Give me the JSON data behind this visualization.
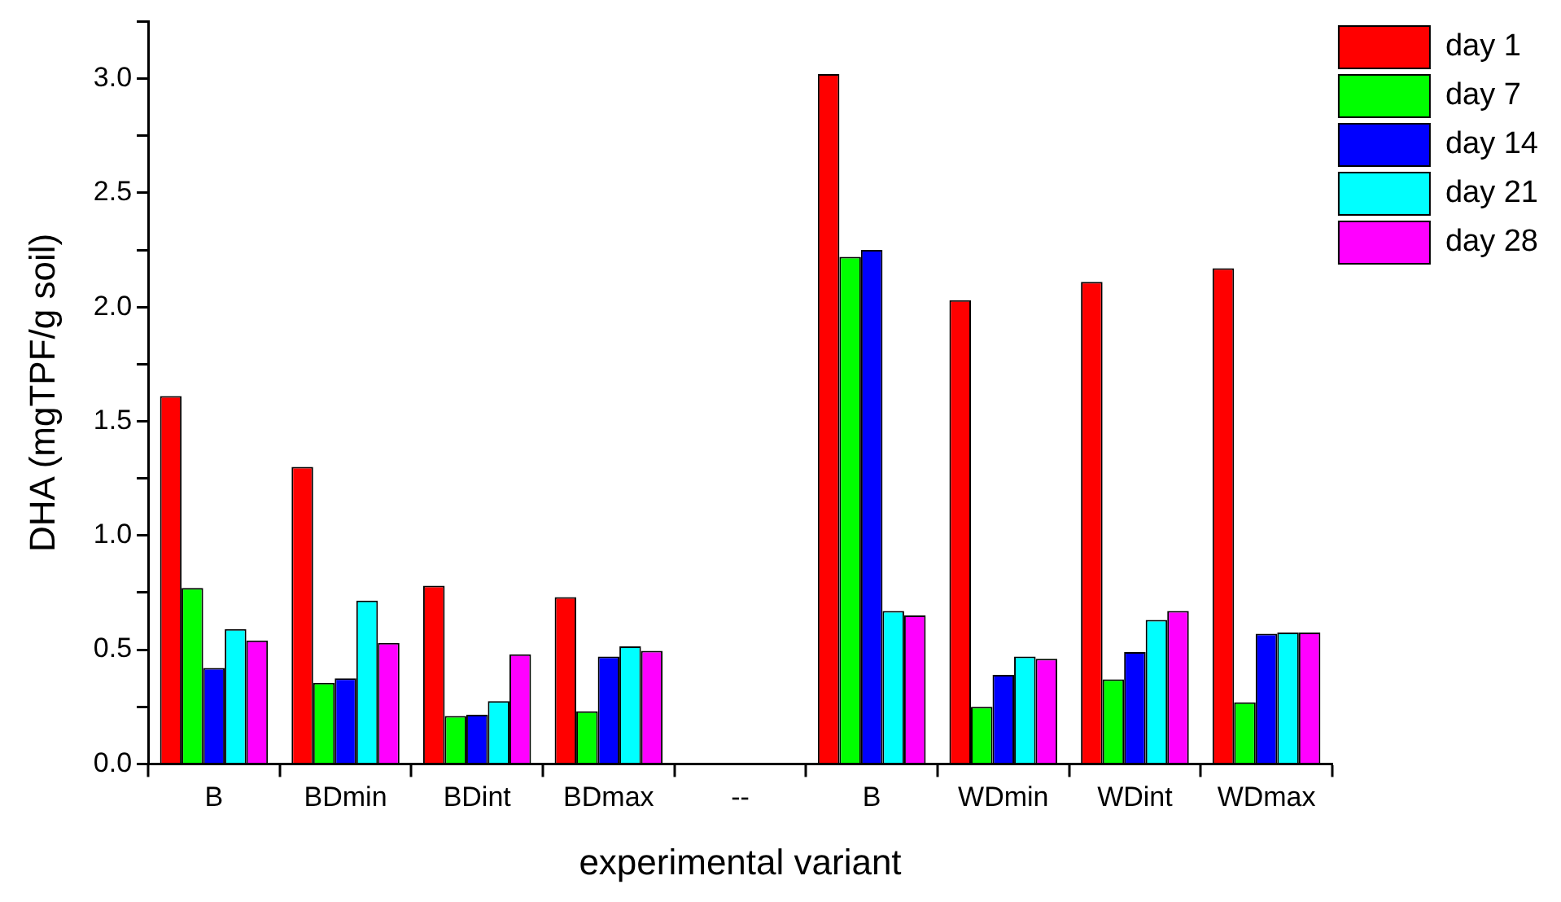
{
  "chart_data": {
    "type": "bar",
    "xlabel": "experimental variant",
    "ylabel": "DHA (mgTPF/g soil)",
    "categories": [
      "B",
      "BDmin",
      "BDint",
      "BDmax",
      "--",
      "B",
      "WDmin",
      "WDint",
      "WDmax"
    ],
    "series": [
      {
        "name": "day 1",
        "color": "#ff0000",
        "values": [
          1.61,
          1.3,
          0.78,
          0.73,
          null,
          3.02,
          2.03,
          2.11,
          2.17
        ]
      },
      {
        "name": "day 7",
        "color": "#00ff00",
        "values": [
          0.77,
          0.355,
          0.21,
          0.23,
          null,
          2.22,
          0.25,
          0.37,
          0.27
        ]
      },
      {
        "name": "day 14",
        "color": "#0000ff",
        "values": [
          0.42,
          0.375,
          0.215,
          0.47,
          null,
          2.25,
          0.39,
          0.49,
          0.57
        ]
      },
      {
        "name": "day 21",
        "color": "#00ffff",
        "values": [
          0.59,
          0.715,
          0.275,
          0.515,
          null,
          0.67,
          0.47,
          0.63,
          0.575
        ]
      },
      {
        "name": "day 28",
        "color": "#ff00ff",
        "values": [
          0.54,
          0.53,
          0.48,
          0.495,
          null,
          0.65,
          0.46,
          0.67,
          0.575
        ]
      }
    ],
    "ylim": [
      0,
      3.25
    ],
    "yticks": [
      {
        "value": 0,
        "label": "0.0"
      },
      {
        "value": 0.25,
        "label": null
      },
      {
        "value": 0.5,
        "label": "0.5"
      },
      {
        "value": 0.75,
        "label": null
      },
      {
        "value": 1,
        "label": "1.0"
      },
      {
        "value": 1.25,
        "label": null
      },
      {
        "value": 1.5,
        "label": "1.5"
      },
      {
        "value": 1.75,
        "label": null
      },
      {
        "value": 2,
        "label": "2.0"
      },
      {
        "value": 2.25,
        "label": null
      },
      {
        "value": 2.5,
        "label": "2.5"
      },
      {
        "value": 2.75,
        "label": null
      },
      {
        "value": 3,
        "label": "3.0"
      },
      {
        "value": 3.25,
        "label": null
      }
    ],
    "grid": false,
    "legend": "top right"
  }
}
